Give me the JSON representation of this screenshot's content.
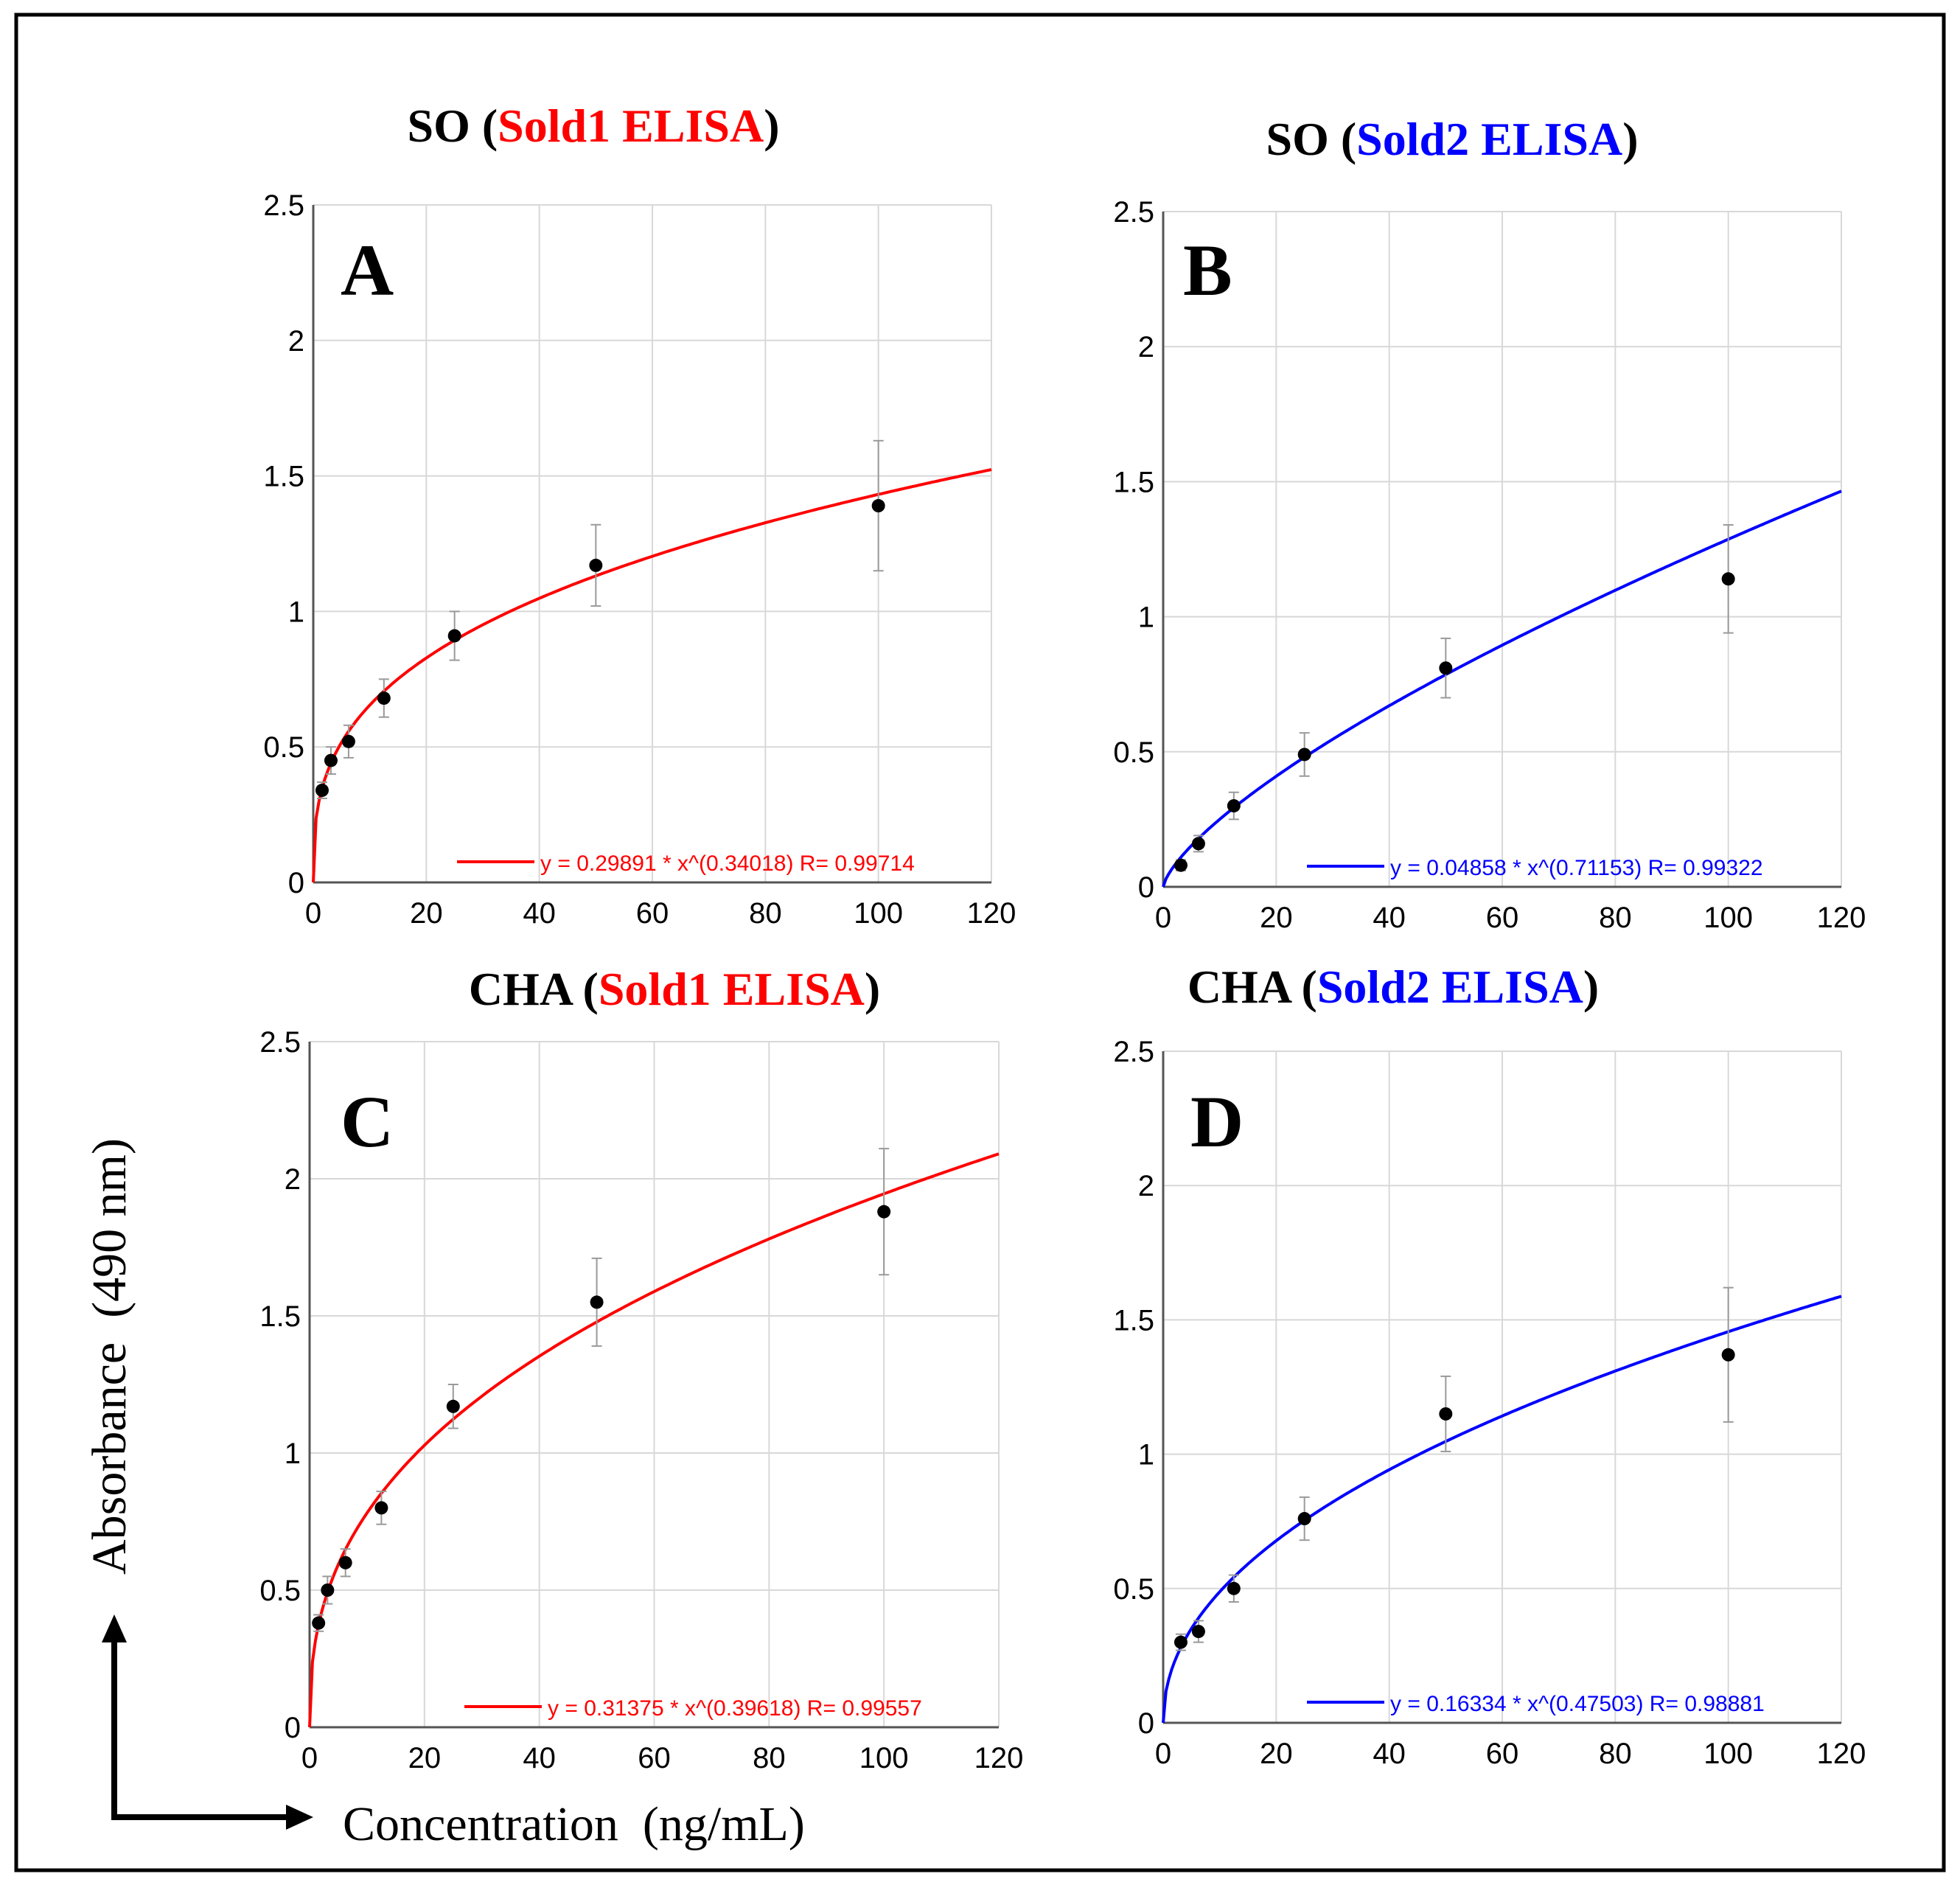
{
  "figure": {
    "y_axis_label": "Absorbance  (490 nm)",
    "x_axis_label": "Concentration  (ng/mL)"
  },
  "colors": {
    "red": "#ff0000",
    "blue": "#0000ff",
    "black": "#000000",
    "grid": "#d8d8d8"
  },
  "chart_data": [
    {
      "type": "scatter",
      "panel": "A",
      "title_prefix": "SO (",
      "title_assay": "Sold1 ELISA",
      "title_suffix": ")",
      "color": "#ff0000",
      "x": [
        1.5625,
        3.125,
        6.25,
        12.5,
        25,
        50,
        100
      ],
      "y": [
        0.34,
        0.45,
        0.52,
        0.68,
        0.91,
        1.17,
        1.39
      ],
      "y_error": [
        0.03,
        0.05,
        0.06,
        0.07,
        0.09,
        0.15,
        0.24
      ],
      "fit": {
        "a": 0.29891,
        "b": 0.34018
      },
      "legend": "y = 0.29891 * x^(0.34018)   R= 0.99714",
      "xlim": [
        0,
        120
      ],
      "ylim": [
        0,
        2.5
      ],
      "xticks": [
        "0",
        "20",
        "40",
        "60",
        "80",
        "100",
        "120"
      ],
      "yticks": [
        "0",
        "0.5",
        "1",
        "1.5",
        "2",
        "2.5"
      ]
    },
    {
      "type": "scatter",
      "panel": "B",
      "title_prefix": "SO (",
      "title_assay": "Sold2 ELISA",
      "title_suffix": ")",
      "color": "#0000ff",
      "x": [
        3.125,
        6.25,
        12.5,
        25,
        50,
        100
      ],
      "y": [
        0.08,
        0.16,
        0.3,
        0.49,
        0.81,
        1.14
      ],
      "y_error": [
        0.02,
        0.03,
        0.05,
        0.08,
        0.11,
        0.2
      ],
      "fit": {
        "a": 0.04858,
        "b": 0.71153
      },
      "legend": "y = 0.04858 * x^(0.71153)   R= 0.99322",
      "xlim": [
        0,
        120
      ],
      "ylim": [
        0,
        2.5
      ],
      "xticks": [
        "0",
        "20",
        "40",
        "60",
        "80",
        "100",
        "120"
      ],
      "yticks": [
        "0",
        "0.5",
        "1",
        "1.5",
        "2",
        "2.5"
      ]
    },
    {
      "type": "scatter",
      "panel": "C",
      "title_prefix": "CHA (",
      "title_assay": "Sold1 ELISA",
      "title_suffix": ")",
      "color": "#ff0000",
      "x": [
        1.5625,
        3.125,
        6.25,
        12.5,
        25,
        50,
        100
      ],
      "y": [
        0.38,
        0.5,
        0.6,
        0.8,
        1.17,
        1.55,
        1.88
      ],
      "y_error": [
        0.03,
        0.05,
        0.05,
        0.06,
        0.08,
        0.16,
        0.23
      ],
      "fit": {
        "a": 0.31375,
        "b": 0.39618
      },
      "legend": "y = 0.31375 * x^(0.39618)   R= 0.99557",
      "xlim": [
        0,
        120
      ],
      "ylim": [
        0,
        2.5
      ],
      "xticks": [
        "0",
        "20",
        "40",
        "60",
        "80",
        "100",
        "120"
      ],
      "yticks": [
        "0",
        "0.5",
        "1",
        "1.5",
        "2",
        "2.5"
      ]
    },
    {
      "type": "scatter",
      "panel": "D",
      "title_prefix": "CHA (",
      "title_assay": "Sold2 ELISA",
      "title_suffix": ")",
      "color": "#0000ff",
      "x": [
        3.125,
        6.25,
        12.5,
        25,
        50,
        100
      ],
      "y": [
        0.3,
        0.34,
        0.5,
        0.76,
        1.15,
        1.37
      ],
      "y_error": [
        0.03,
        0.04,
        0.05,
        0.08,
        0.14,
        0.25
      ],
      "fit": {
        "a": 0.16334,
        "b": 0.47503
      },
      "legend": "y = 0.16334 * x^(0.47503)   R= 0.98881",
      "xlim": [
        0,
        120
      ],
      "ylim": [
        0,
        2.5
      ],
      "xticks": [
        "0",
        "20",
        "40",
        "60",
        "80",
        "100",
        "120"
      ],
      "yticks": [
        "0",
        "0.5",
        "1",
        "1.5",
        "2",
        "2.5"
      ]
    }
  ]
}
